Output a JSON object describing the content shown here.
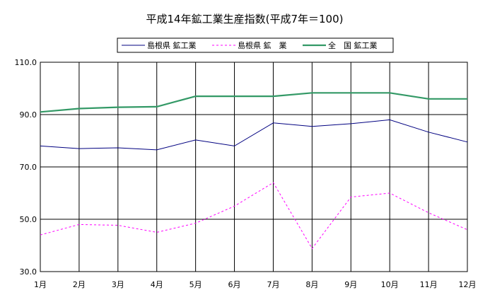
{
  "chart_data": {
    "type": "line",
    "title": "平成14年鉱工業生産指数(平成7年＝100)",
    "categories": [
      "1月",
      "2月",
      "3月",
      "4月",
      "5月",
      "6月",
      "7月",
      "8月",
      "9月",
      "10月",
      "11月",
      "12月"
    ],
    "ylim": [
      30,
      110
    ],
    "yticks": [
      "30.0",
      "50.0",
      "70.0",
      "90.0",
      "110.0"
    ],
    "grid": true,
    "legend_position": "top",
    "series": [
      {
        "name": "島根県 鉱工業",
        "color": "#000080",
        "dash": "solid",
        "width": 1,
        "values": [
          78.0,
          77.0,
          77.3,
          76.5,
          80.3,
          78.0,
          86.8,
          85.5,
          86.5,
          88.0,
          83.3,
          79.5
        ]
      },
      {
        "name": "島根県 鉱　業",
        "color": "#ff00ff",
        "dash": "dashed",
        "width": 1,
        "values": [
          44.0,
          48.0,
          47.7,
          45.0,
          48.5,
          55.0,
          64.0,
          38.8,
          58.5,
          60.0,
          52.5,
          46.0
        ]
      },
      {
        "name": "全　国 鉱工業",
        "color": "#339966",
        "dash": "solid",
        "width": 2.2,
        "values": [
          91.0,
          92.3,
          92.8,
          93.0,
          97.0,
          97.0,
          97.0,
          98.3,
          98.3,
          98.3,
          96.0,
          96.0
        ]
      }
    ]
  }
}
